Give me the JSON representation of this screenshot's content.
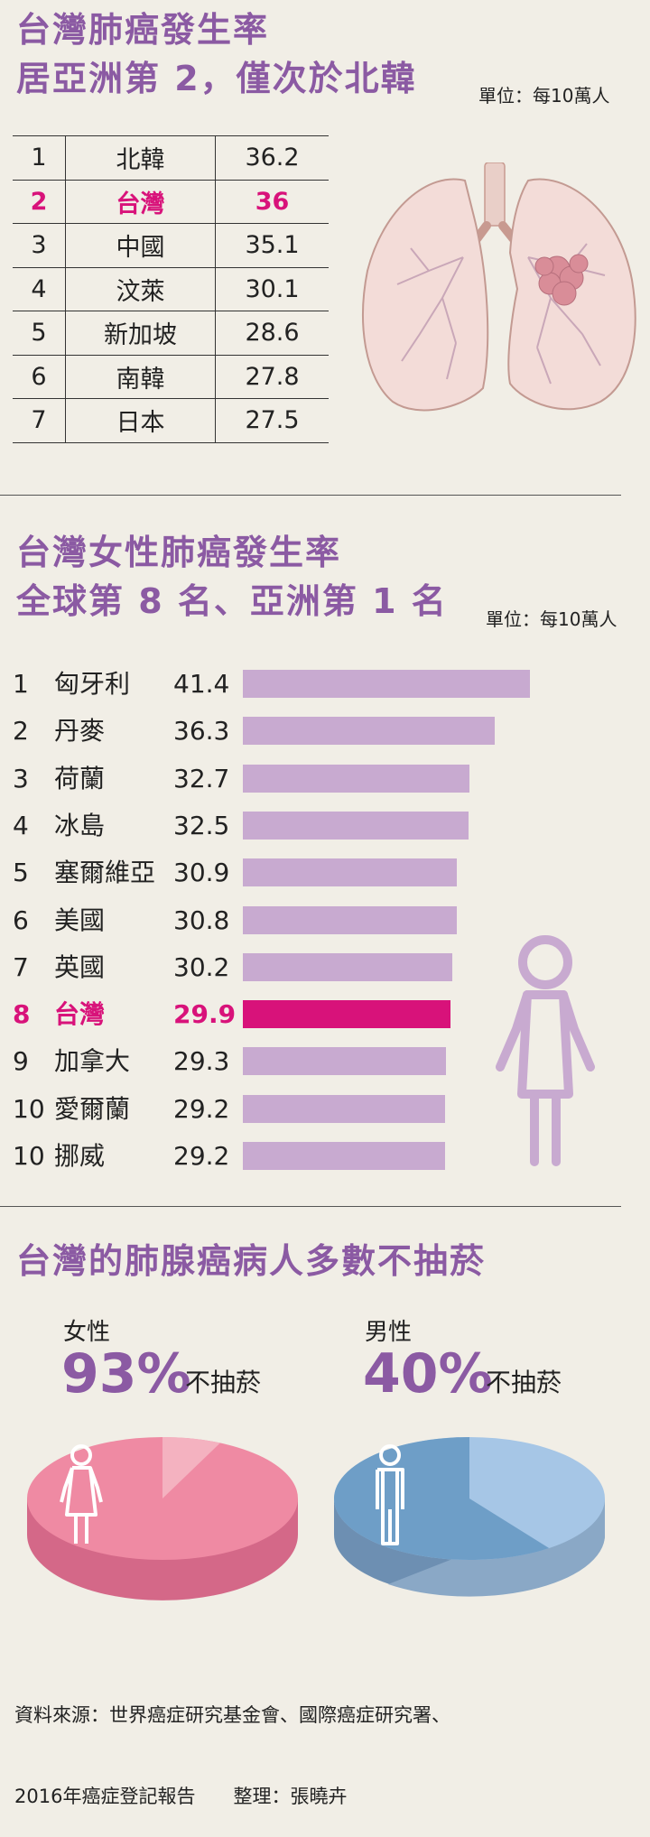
{
  "section1": {
    "title_line1": "台灣肺癌發生率",
    "title_line2": "居亞洲第 2，僅次於北韓",
    "unit": "單位：每10萬人",
    "highlight_index": 1,
    "rows": [
      {
        "rank": "1",
        "country": "北韓",
        "value": "36.2"
      },
      {
        "rank": "2",
        "country": "台灣",
        "value": "36"
      },
      {
        "rank": "3",
        "country": "中國",
        "value": "35.1"
      },
      {
        "rank": "4",
        "country": "汶萊",
        "value": "30.1"
      },
      {
        "rank": "5",
        "country": "新加坡",
        "value": "28.6"
      },
      {
        "rank": "6",
        "country": "南韓",
        "value": "27.8"
      },
      {
        "rank": "7",
        "country": "日本",
        "value": "27.5"
      }
    ]
  },
  "section2": {
    "title_line1": "台灣女性肺癌發生率",
    "title_line2": "全球第 8 名、亞洲第 1 名",
    "unit": "單位：每10萬人"
  },
  "chart_data": {
    "type": "bar",
    "orientation": "horizontal",
    "categories": [
      "匈牙利",
      "丹麥",
      "荷蘭",
      "冰島",
      "塞爾維亞",
      "美國",
      "英國",
      "台灣",
      "加拿大",
      "愛爾蘭",
      "挪威"
    ],
    "ranks": [
      "1",
      "2",
      "3",
      "4",
      "5",
      "6",
      "7",
      "8",
      "9",
      "10",
      "10"
    ],
    "value_labels": [
      "41.4",
      "36.3",
      "32.7",
      "32.5",
      "30.9",
      "30.8",
      "30.2",
      "29.9",
      "29.3",
      "29.2",
      "29.2"
    ],
    "values": [
      41.4,
      36.3,
      32.7,
      32.5,
      30.9,
      30.8,
      30.2,
      29.9,
      29.3,
      29.2,
      29.2
    ],
    "highlight": "台灣",
    "colors": {
      "bar": "#c8aad0",
      "highlight": "#d8127a"
    },
    "xlim": [
      0,
      45
    ]
  },
  "section3": {
    "title": "台灣的肺腺癌病人多數不抽菸",
    "female": {
      "label": "女性",
      "percent": "93%",
      "percent_value": 93,
      "suffix": "不抽菸",
      "color": "#ef8aa3"
    },
    "male": {
      "label": "男性",
      "percent": "40%",
      "percent_value": 40,
      "suffix": "不抽菸",
      "color": "#a6c6e6"
    }
  },
  "source": {
    "line1": "資料來源：世界癌症研究基金會、國際癌症研究署、",
    "line2": "2016年癌症登記報告　　整理：張曉卉"
  },
  "colors": {
    "title": "#8b5aa3",
    "accent": "#d8127a",
    "background": "#f1eee6"
  },
  "icons": [
    "lung-illustration",
    "woman-icon",
    "female-figure-icon",
    "male-figure-icon"
  ]
}
